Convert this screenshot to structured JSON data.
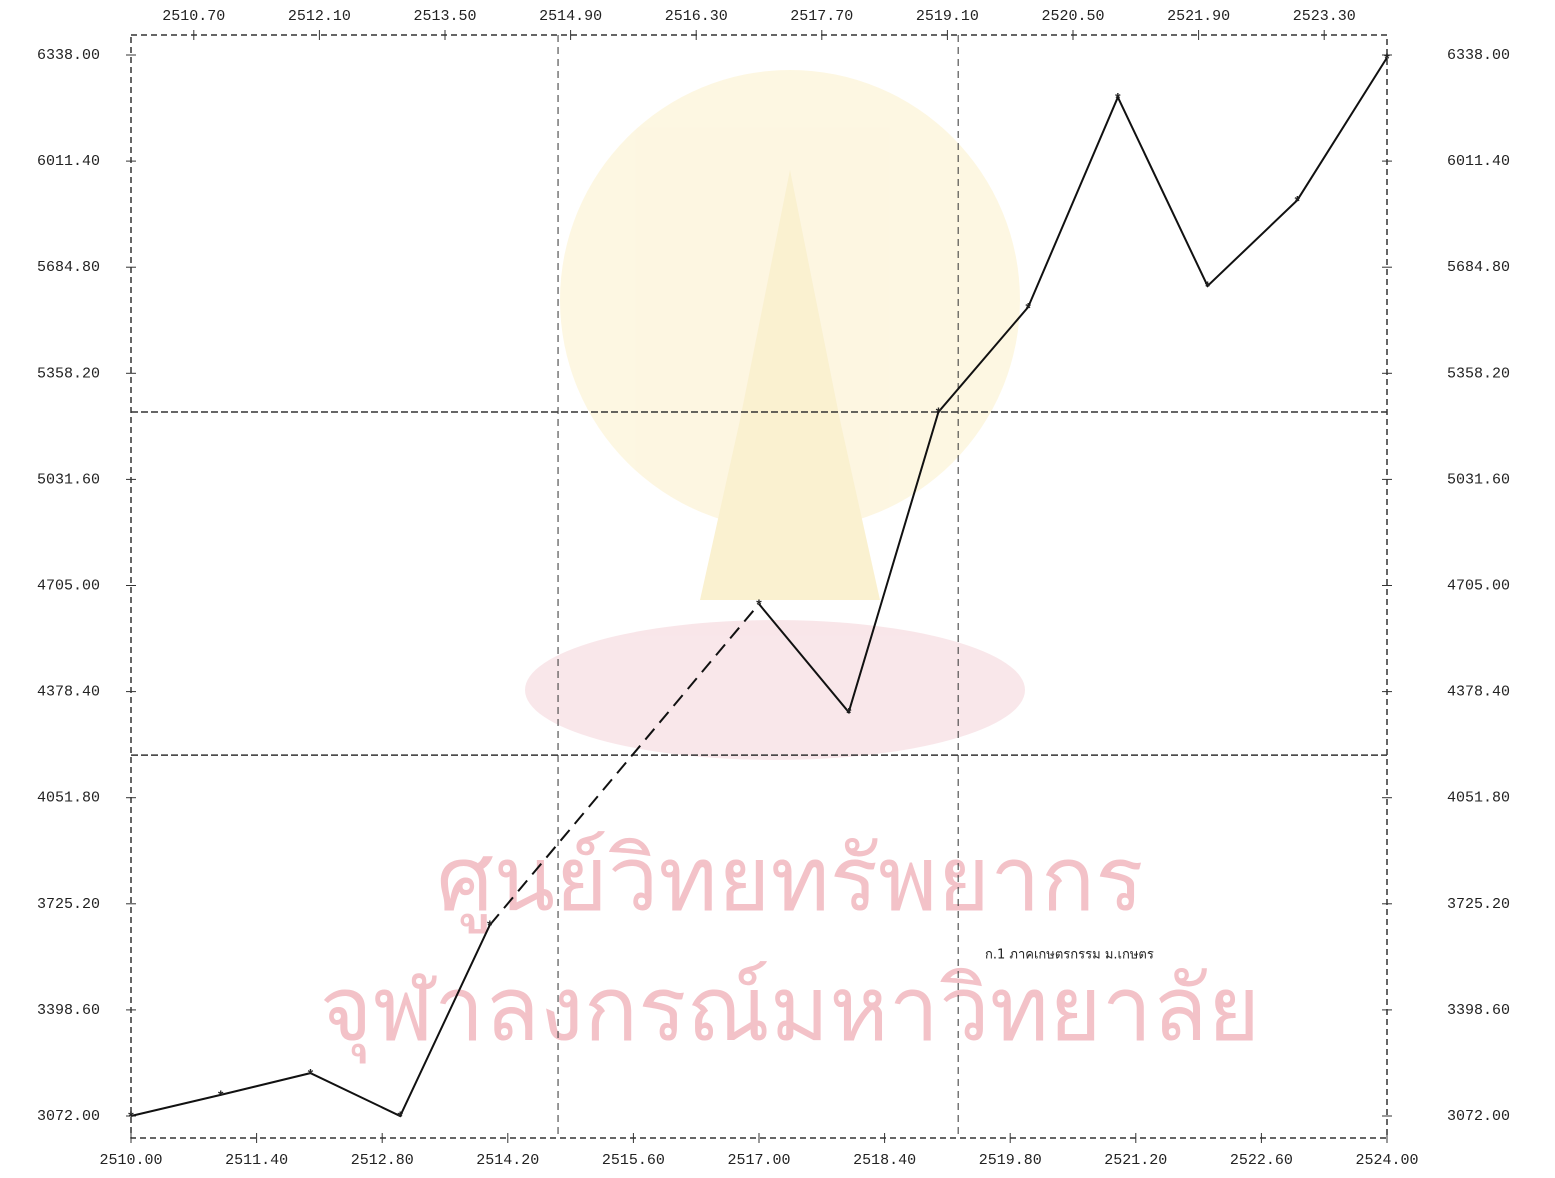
{
  "chart_data": {
    "type": "line",
    "x": [
      2510,
      2511,
      2512,
      2513,
      2514,
      2515,
      2516,
      2517,
      2518,
      2519,
      2520,
      2521,
      2522,
      2523,
      2524
    ],
    "series": [
      {
        "color": "#111111",
        "values": [
          3072,
          3137,
          3204,
          3072,
          3660,
          null,
          null,
          4648,
          4315,
          5239,
          5562,
          6208,
          5627,
          5891,
          6330
        ]
      }
    ],
    "gap_style": "dashed",
    "xlim": [
      2510,
      2524
    ],
    "xticks": [
      {
        "value": 2510,
        "label": "2510.00"
      },
      {
        "value": 2511.4,
        "label": "2511.40"
      },
      {
        "value": 2512.8,
        "label": "2512.80"
      },
      {
        "value": 2514.2,
        "label": "2514.20"
      },
      {
        "value": 2515.6,
        "label": "2515.60"
      },
      {
        "value": 2517,
        "label": "2517.00"
      },
      {
        "value": 2518.4,
        "label": "2518.40"
      },
      {
        "value": 2519.8,
        "label": "2519.80"
      },
      {
        "value": 2521.2,
        "label": "2521.20"
      },
      {
        "value": 2522.6,
        "label": "2522.60"
      },
      {
        "value": 2524,
        "label": "2524.00"
      }
    ],
    "x2ticks": [
      {
        "value": 2510.7,
        "label": "2510.70"
      },
      {
        "value": 2512.1,
        "label": "2512.10"
      },
      {
        "value": 2513.5,
        "label": "2513.50"
      },
      {
        "value": 2514.9,
        "label": "2514.90"
      },
      {
        "value": 2516.3,
        "label": "2516.30"
      },
      {
        "value": 2517.7,
        "label": "2517.70"
      },
      {
        "value": 2519.1,
        "label": "2519.10"
      },
      {
        "value": 2520.5,
        "label": "2520.50"
      },
      {
        "value": 2521.9,
        "label": "2521.90"
      },
      {
        "value": 2523.3,
        "label": "2523.30"
      }
    ],
    "ylim": [
      3072,
      6338
    ],
    "yticks": [
      {
        "value": 3072,
        "label": "3072.00"
      },
      {
        "value": 3398.6,
        "label": "3398.60"
      },
      {
        "value": 3725.2,
        "label": "3725.20"
      },
      {
        "value": 4051.8,
        "label": "4051.80"
      },
      {
        "value": 4378.4,
        "label": "4378.40"
      },
      {
        "value": 4705,
        "label": "4705.00"
      },
      {
        "value": 5031.6,
        "label": "5031.60"
      },
      {
        "value": 5358.2,
        "label": "5358.20"
      },
      {
        "value": 5684.8,
        "label": "5684.80"
      },
      {
        "value": 6011.4,
        "label": "6011.40"
      },
      {
        "value": 6338,
        "label": "6338.00"
      }
    ],
    "ref_lines": {
      "x": [
        2514.76,
        2519.22
      ],
      "y": [
        4183,
        5239
      ]
    },
    "annotation": "ก.1 ภาคเกษตรกรรม ม.เกษตร",
    "watermark": [
      "ศูนย์วิทยทรัพยากร",
      "จุฬาลงกรณ์มหาวิทยาลัย"
    ]
  }
}
